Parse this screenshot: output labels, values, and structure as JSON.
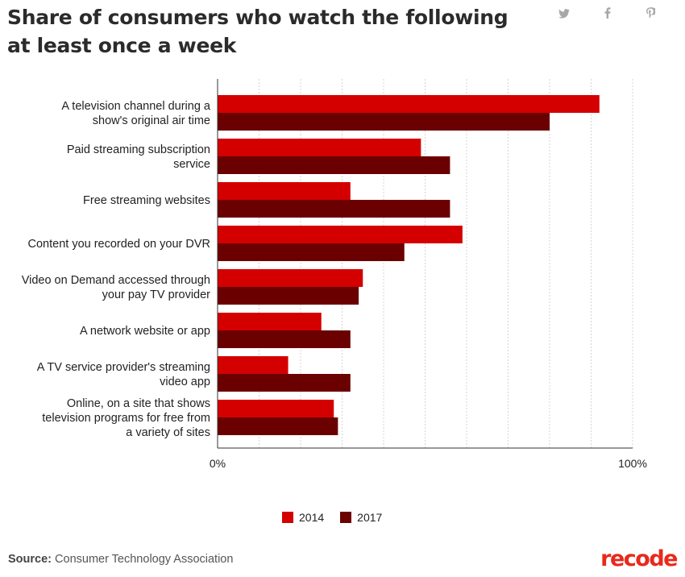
{
  "header": {
    "title": "Share of consumers who watch the following at least once a week"
  },
  "share_icons": [
    {
      "name": "twitter-icon",
      "glyph": "🐦"
    },
    {
      "name": "facebook-icon",
      "glyph": "f"
    },
    {
      "name": "pinterest-icon",
      "glyph": "P"
    }
  ],
  "footer": {
    "source_label": "Source:",
    "source_text": "Consumer Technology Association",
    "logo": "recode"
  },
  "chart_data": {
    "type": "bar",
    "orientation": "horizontal",
    "categories": [
      [
        "A television channel during a",
        "show's original air time"
      ],
      [
        "Paid streaming subscription",
        "service"
      ],
      [
        "Free streaming websites"
      ],
      [
        "Content you recorded on your DVR"
      ],
      [
        "Video on Demand accessed through",
        "your pay TV provider"
      ],
      [
        "A network website or app"
      ],
      [
        "A TV service provider's streaming",
        "video app"
      ],
      [
        "Online, on a site that shows",
        "television programs for free from",
        "a variety of sites"
      ]
    ],
    "series": [
      {
        "name": "2014",
        "color": "#d40000",
        "values": [
          92,
          49,
          32,
          59,
          35,
          25,
          17,
          28
        ]
      },
      {
        "name": "2017",
        "color": "#6b0000",
        "values": [
          80,
          56,
          56,
          45,
          34,
          32,
          32,
          29
        ]
      }
    ],
    "xlim": [
      0,
      100
    ],
    "x_tick_labels": [
      "0%",
      "100%"
    ],
    "grid": "vertical-dashed",
    "legend_position": "bottom"
  }
}
